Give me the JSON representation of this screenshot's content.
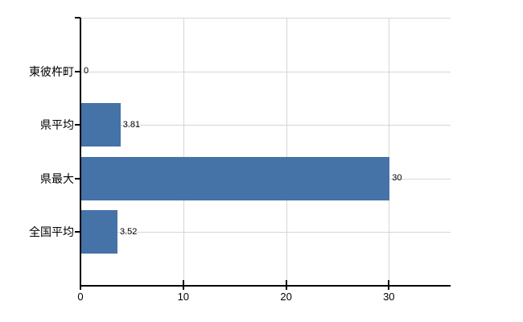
{
  "chart_data": {
    "type": "bar",
    "orientation": "horizontal",
    "title": "",
    "xlabel": "",
    "ylabel": "",
    "categories": [
      "東彼杵町",
      "県平均",
      "県最大",
      "全国平均"
    ],
    "values": [
      0,
      3.81,
      30,
      3.52
    ],
    "data_labels": [
      "0",
      "3.81",
      "30",
      "3.52"
    ],
    "xlim": [
      0,
      36
    ],
    "xticks": [
      0,
      10,
      20,
      30
    ],
    "xtick_labels": [
      "0",
      "10",
      "20",
      "30"
    ],
    "grid": true,
    "legend": "none",
    "colors": {
      "bar": "#4572a7",
      "grid": "#d6d6d6",
      "axis": "#000000",
      "text": "#000000",
      "background": "#ffffff"
    }
  }
}
